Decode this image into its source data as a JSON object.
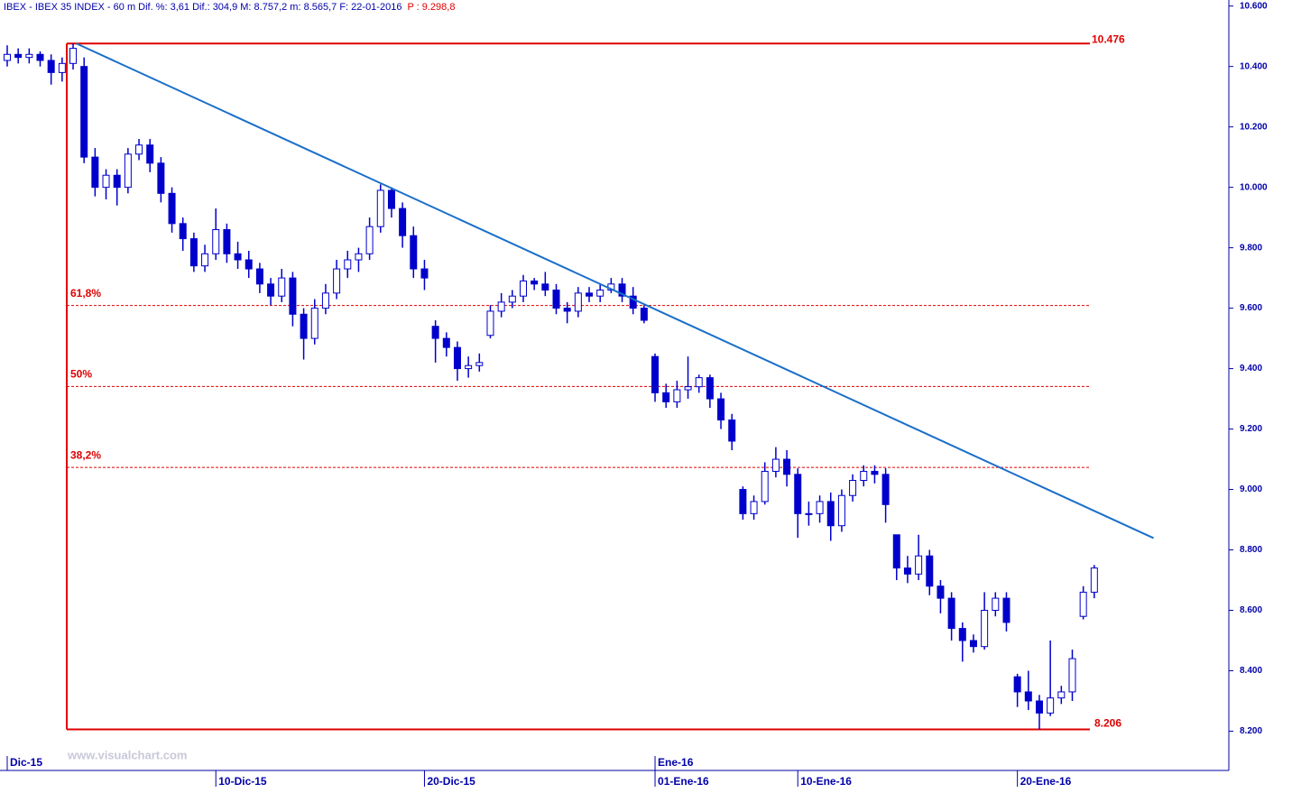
{
  "chart_data": {
    "type": "candlestick",
    "title": "IBEX - IBEX 35 INDEX - 60 m  Dif. %: 3,61  Dif.: 304,9  M: 8.757,2  m: 8.565,7  F: 22-01-2016",
    "last_price": "P : 9.298,8",
    "watermark": "www.visualchart.com",
    "categories": [
      null,
      null,
      null,
      null,
      null,
      null,
      null,
      null,
      null,
      null,
      null,
      null,
      null,
      null,
      null,
      null,
      null,
      null,
      null,
      "10-Dic-15",
      null,
      null,
      null,
      null,
      null,
      null,
      null,
      null,
      null,
      null,
      null,
      null,
      null,
      null,
      null,
      null,
      null,
      null,
      "20-Dic-15",
      null,
      null,
      null,
      null,
      null,
      null,
      null,
      null,
      null,
      null,
      null,
      null,
      null,
      null,
      null,
      null,
      null,
      null,
      null,
      null,
      "01-Ene-16",
      null,
      null,
      null,
      null,
      null,
      null,
      null,
      null,
      null,
      null,
      null,
      null,
      "10-Ene-16",
      null,
      null,
      null,
      null,
      null,
      null,
      null,
      null,
      null,
      null,
      null,
      null,
      null,
      null,
      null,
      null,
      null,
      null,
      null,
      "20-Ene-16",
      null,
      null,
      null,
      null,
      null,
      null,
      null
    ],
    "months": [
      {
        "category": 0,
        "label": "Dic-15"
      },
      {
        "category": 59,
        "label": "Ene-16"
      }
    ],
    "open": [
      10420,
      10440,
      10430,
      10440,
      10420,
      10380,
      10410,
      10400,
      10100,
      10000,
      10040,
      10000,
      10110,
      10140,
      10080,
      9980,
      9880,
      9830,
      9740,
      9780,
      9860,
      9780,
      9760,
      9730,
      9680,
      9640,
      9700,
      9580,
      9500,
      9600,
      9650,
      9730,
      9760,
      9780,
      9870,
      9990,
      9930,
      9840,
      9730,
      9540,
      9500,
      9470,
      9400,
      9410,
      9510,
      9590,
      9620,
      9640,
      9690,
      9680,
      9660,
      9600,
      9590,
      9650,
      9640,
      9660,
      9680,
      9640,
      9600,
      9440,
      9320,
      9290,
      9330,
      9340,
      9370,
      9300,
      9230,
      9000,
      8920,
      8960,
      9060,
      9100,
      9050,
      8920,
      8920,
      8960,
      8880,
      8980,
      9030,
      9060,
      9050,
      8850,
      8740,
      8720,
      8780,
      8680,
      8640,
      8540,
      8500,
      8480,
      8600,
      8640,
      8380,
      8330,
      8300,
      8260,
      8310,
      8330,
      8580,
      8660
    ],
    "high": [
      10470,
      10460,
      10460,
      10450,
      10440,
      10430,
      10476,
      10430,
      10130,
      10060,
      10060,
      10130,
      10160,
      10160,
      10100,
      10000,
      9900,
      9850,
      9810,
      9930,
      9880,
      9820,
      9790,
      9750,
      9700,
      9730,
      9720,
      9600,
      9630,
      9680,
      9760,
      9790,
      9800,
      9900,
      10010,
      10000,
      9950,
      9870,
      9760,
      9560,
      9520,
      9490,
      9440,
      9450,
      9610,
      9650,
      9660,
      9710,
      9700,
      9720,
      9680,
      9620,
      9670,
      9670,
      9680,
      9700,
      9700,
      9670,
      9610,
      9450,
      9350,
      9360,
      9440,
      9380,
      9380,
      9320,
      9250,
      9010,
      8980,
      9090,
      9140,
      9130,
      9070,
      8960,
      8980,
      8990,
      9000,
      9050,
      9080,
      9080,
      9070,
      8850,
      8780,
      8850,
      8800,
      8700,
      8660,
      8560,
      8520,
      8660,
      8660,
      8660,
      8390,
      8400,
      8320,
      8500,
      8350,
      8470,
      8680,
      8750
    ],
    "low": [
      10400,
      10410,
      10410,
      10400,
      10340,
      10350,
      10390,
      10080,
      9970,
      9960,
      9940,
      9980,
      10090,
      10050,
      9950,
      9850,
      9790,
      9720,
      9720,
      9760,
      9750,
      9730,
      9700,
      9650,
      9610,
      9620,
      9540,
      9430,
      9480,
      9580,
      9630,
      9700,
      9720,
      9760,
      9850,
      9900,
      9800,
      9700,
      9660,
      9420,
      9440,
      9360,
      9370,
      9390,
      9500,
      9570,
      9600,
      9620,
      9660,
      9640,
      9580,
      9550,
      9570,
      9620,
      9620,
      9650,
      9620,
      9580,
      9550,
      9290,
      9270,
      9270,
      9300,
      9320,
      9270,
      9200,
      9130,
      8900,
      8900,
      8950,
      9040,
      9010,
      8840,
      8880,
      8890,
      8830,
      8860,
      8960,
      9010,
      9020,
      8890,
      8700,
      8690,
      8700,
      8650,
      8590,
      8500,
      8430,
      8460,
      8470,
      8580,
      8530,
      8280,
      8270,
      8206,
      8250,
      8290,
      8300,
      8570,
      8640
    ],
    "close": [
      10440,
      10430,
      10440,
      10420,
      10380,
      10410,
      10460,
      10100,
      10000,
      10040,
      10000,
      10110,
      10140,
      10080,
      9980,
      9880,
      9830,
      9740,
      9780,
      9860,
      9780,
      9760,
      9730,
      9680,
      9640,
      9700,
      9580,
      9500,
      9600,
      9650,
      9730,
      9760,
      9780,
      9870,
      9990,
      9930,
      9840,
      9730,
      9700,
      9500,
      9470,
      9400,
      9410,
      9420,
      9590,
      9620,
      9640,
      9690,
      9680,
      9660,
      9600,
      9590,
      9650,
      9640,
      9660,
      9680,
      9640,
      9600,
      9560,
      9320,
      9290,
      9330,
      9340,
      9370,
      9300,
      9230,
      9160,
      8920,
      8960,
      9060,
      9100,
      9050,
      8920,
      8920,
      8960,
      8880,
      8980,
      9030,
      9060,
      9050,
      8950,
      8740,
      8720,
      8780,
      8680,
      8640,
      8540,
      8500,
      8480,
      8600,
      8640,
      8560,
      8330,
      8300,
      8260,
      8310,
      8330,
      8440,
      8660,
      8740
    ],
    "color": "#0000cc",
    "ylim": [
      8070,
      10620
    ],
    "yticks": [
      {
        "value": 8200,
        "label": "8.200"
      },
      {
        "value": 8400,
        "label": "8.400"
      },
      {
        "value": 8600,
        "label": "8.600"
      },
      {
        "value": 8800,
        "label": "8.800"
      },
      {
        "value": 9000,
        "label": "9.000"
      },
      {
        "value": 9200,
        "label": "9.200"
      },
      {
        "value": 9400,
        "label": "9.400"
      },
      {
        "value": 9600,
        "label": "9.600"
      },
      {
        "value": 9800,
        "label": "9.800"
      },
      {
        "value": 10000,
        "label": "10.000"
      },
      {
        "value": 10200,
        "label": "10.200"
      },
      {
        "value": 10400,
        "label": "10.400"
      },
      {
        "value": 10600,
        "label": "10.600"
      }
    ],
    "trendline": {
      "x": [
        6.3,
        104.4
      ],
      "y": [
        10476,
        8839
      ],
      "color": "#1a6fc9"
    },
    "fibonacci": {
      "color": "#e00000",
      "high": {
        "value": 10476,
        "label": "10.476"
      },
      "low": {
        "value": 8206,
        "label": "8.206"
      },
      "levels": [
        {
          "value": 9609,
          "label": "61,8%"
        },
        {
          "value": 9341,
          "label": "50%"
        },
        {
          "value": 9073,
          "label": "38,2%"
        }
      ]
    }
  }
}
